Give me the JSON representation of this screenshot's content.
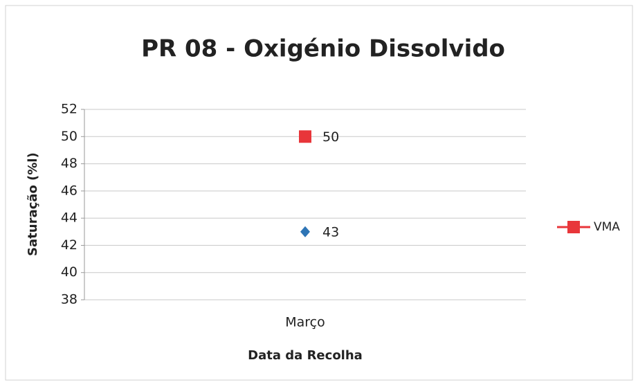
{
  "chart_data": {
    "type": "line",
    "title": "PR 08 - Oxigénio Dissolvido",
    "x_label": "Data da Recolha",
    "y_label": "Saturação (%l)",
    "categories": [
      "Março"
    ],
    "series": [
      {
        "color": "#2e75b6",
        "marker": "diamond",
        "values": [
          43
        ]
      },
      {
        "name": "VMA",
        "color": "#e8363a",
        "marker": "square",
        "values": [
          50
        ]
      }
    ],
    "ylim": [
      38,
      52
    ],
    "yticks": [
      38,
      40,
      42,
      44,
      46,
      48,
      50,
      52
    ],
    "grid": true,
    "legend": "right"
  }
}
